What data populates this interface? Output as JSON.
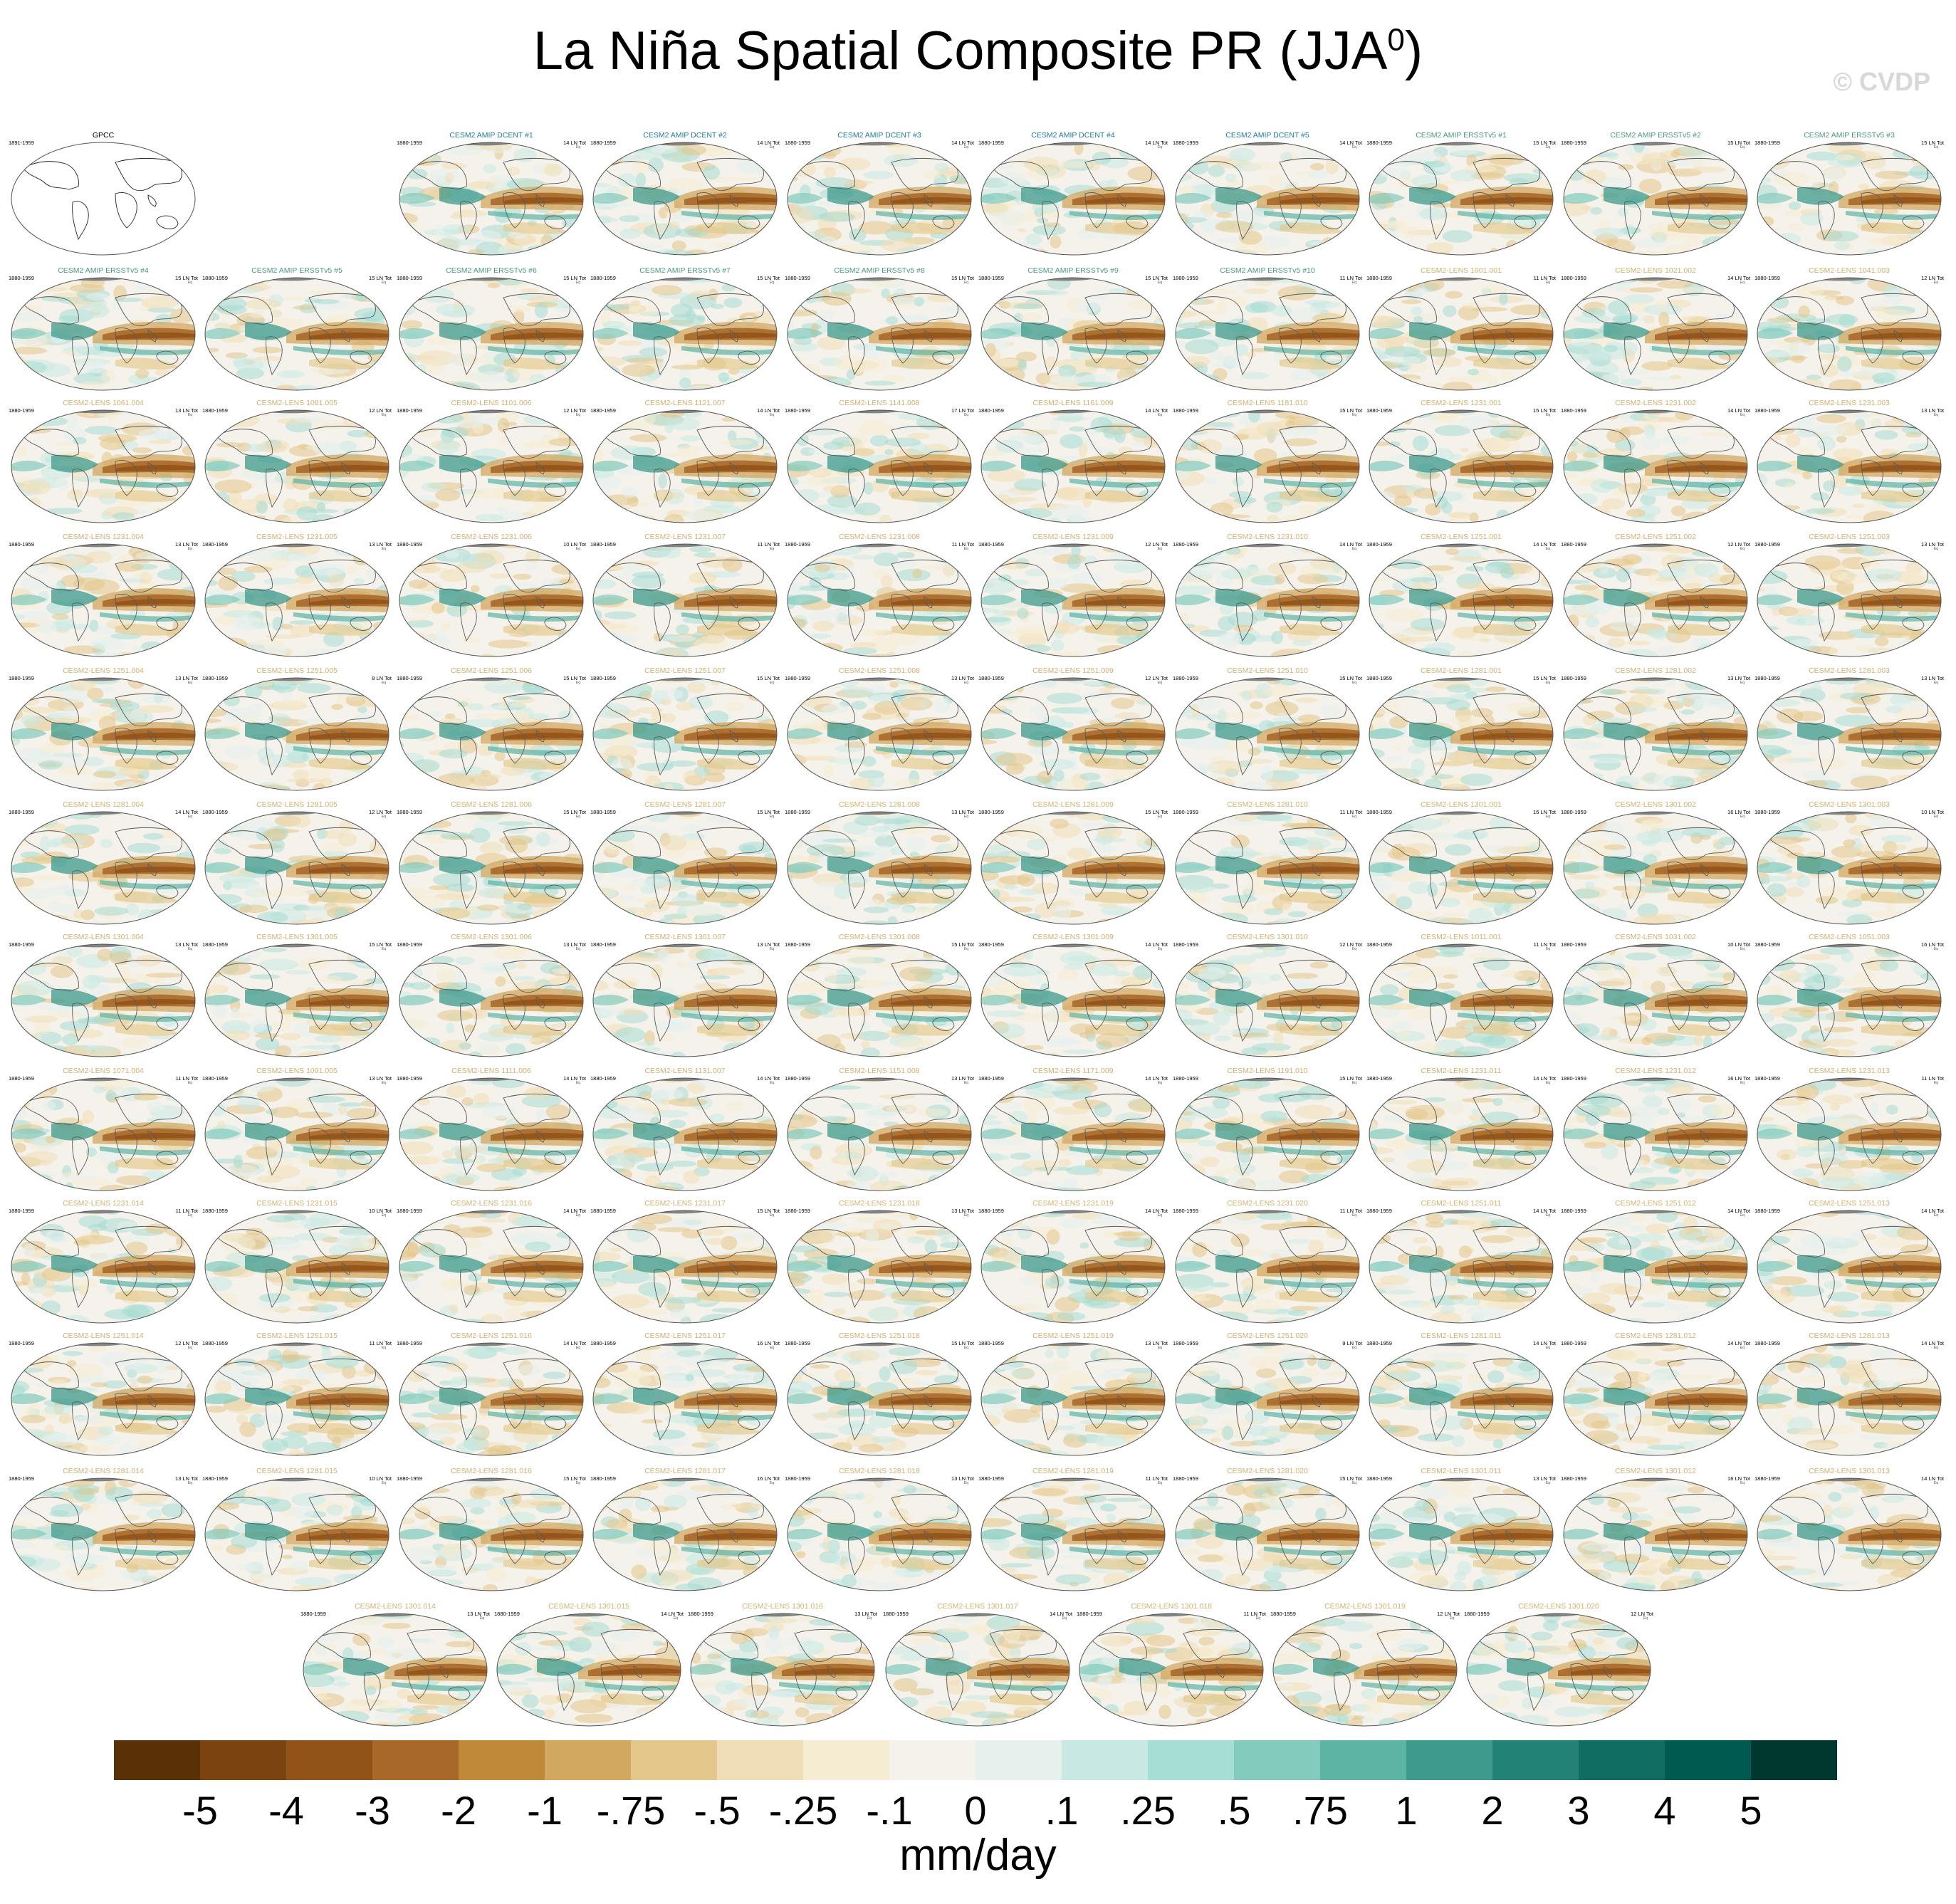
{
  "figure": {
    "title": "La Niña Spatial Composite PR (JJA",
    "title_sup": "0",
    "title_close": ")",
    "credit": "© CVDP"
  },
  "tag_text": "Eq",
  "panels": [
    {
      "title": "GPCC",
      "period": "1891-1959",
      "count": "",
      "kind": "obs"
    },
    {
      "title": "CESM2 AMIP DCENT #1",
      "period": "1880-1959",
      "count": "14 LN Tot",
      "kind": "dcent"
    },
    {
      "title": "CESM2 AMIP DCENT #2",
      "period": "1880-1959",
      "count": "14 LN Tot",
      "kind": "dcent"
    },
    {
      "title": "CESM2 AMIP DCENT #3",
      "period": "1880-1959",
      "count": "14 LN Tot",
      "kind": "dcent"
    },
    {
      "title": "CESM2 AMIP DCENT #4",
      "period": "1880-1959",
      "count": "14 LN Tot",
      "kind": "dcent"
    },
    {
      "title": "CESM2 AMIP DCENT #5",
      "period": "1880-1959",
      "count": "14 LN Tot",
      "kind": "dcent"
    },
    {
      "title": "CESM2 AMIP ERSSTv5 #1",
      "period": "1880-1959",
      "count": "15 LN Tot",
      "kind": "ersst"
    },
    {
      "title": "CESM2 AMIP ERSSTv5 #2",
      "period": "1880-1959",
      "count": "15 LN Tot",
      "kind": "ersst"
    },
    {
      "title": "CESM2 AMIP ERSSTv5 #3",
      "period": "1880-1959",
      "count": "15 LN Tot",
      "kind": "ersst"
    },
    {
      "title": "CESM2 AMIP ERSSTv5 #4",
      "period": "1880-1959",
      "count": "15 LN Tot",
      "kind": "ersst"
    },
    {
      "title": "CESM2 AMIP ERSSTv5 #5",
      "period": "1880-1959",
      "count": "15 LN Tot",
      "kind": "ersst"
    },
    {
      "title": "CESM2 AMIP ERSSTv5 #6",
      "period": "1880-1959",
      "count": "15 LN Tot",
      "kind": "ersst"
    },
    {
      "title": "CESM2 AMIP ERSSTv5 #7",
      "period": "1880-1959",
      "count": "15 LN Tot",
      "kind": "ersst"
    },
    {
      "title": "CESM2 AMIP ERSSTv5 #8",
      "period": "1880-1959",
      "count": "15 LN Tot",
      "kind": "ersst"
    },
    {
      "title": "CESM2 AMIP ERSSTv5 #9",
      "period": "1880-1959",
      "count": "15 LN Tot",
      "kind": "ersst"
    },
    {
      "title": "CESM2 AMIP ERSSTv5 #10",
      "period": "1880-1959",
      "count": "11 LN Tot",
      "kind": "ersst"
    },
    {
      "title": "CESM2-LENS 1001.001",
      "period": "1880-1959",
      "count": "11 LN Tot",
      "kind": "lens"
    },
    {
      "title": "CESM2-LENS 1021.002",
      "period": "1880-1959",
      "count": "14 LN Tot",
      "kind": "lens"
    },
    {
      "title": "CESM2-LENS 1041.003",
      "period": "1880-1959",
      "count": "12 LN Tot",
      "kind": "lens"
    },
    {
      "title": "CESM2-LENS 1061.004",
      "period": "1880-1959",
      "count": "13 LN Tot",
      "kind": "lens"
    },
    {
      "title": "CESM2-LENS 1081.005",
      "period": "1880-1959",
      "count": "12 LN Tot",
      "kind": "lens"
    },
    {
      "title": "CESM2-LENS 1101.006",
      "period": "1880-1959",
      "count": "12 LN Tot",
      "kind": "lens"
    },
    {
      "title": "CESM2-LENS 1121.007",
      "period": "1880-1959",
      "count": "14 LN Tot",
      "kind": "lens"
    },
    {
      "title": "CESM2-LENS 1141.008",
      "period": "1880-1959",
      "count": "17 LN Tot",
      "kind": "lens"
    },
    {
      "title": "CESM2-LENS 1161.009",
      "period": "1880-1959",
      "count": "14 LN Tot",
      "kind": "lens"
    },
    {
      "title": "CESM2-LENS 1181.010",
      "period": "1880-1959",
      "count": "15 LN Tot",
      "kind": "lens"
    },
    {
      "title": "CESM2-LENS 1231.001",
      "period": "1880-1959",
      "count": "15 LN Tot",
      "kind": "lens"
    },
    {
      "title": "CESM2-LENS 1231.002",
      "period": "1880-1959",
      "count": "14 LN Tot",
      "kind": "lens"
    },
    {
      "title": "CESM2-LENS 1231.003",
      "period": "1880-1959",
      "count": "13 LN Tot",
      "kind": "lens"
    },
    {
      "title": "CESM2-LENS 1231.004",
      "period": "1880-1959",
      "count": "13 LN Tot",
      "kind": "lens"
    },
    {
      "title": "CESM2-LENS 1231.005",
      "period": "1880-1959",
      "count": "13 LN Tot",
      "kind": "lens"
    },
    {
      "title": "CESM2-LENS 1231.006",
      "period": "1880-1959",
      "count": "10 LN Tot",
      "kind": "lens"
    },
    {
      "title": "CESM2-LENS 1231.007",
      "period": "1880-1959",
      "count": "11 LN Tot",
      "kind": "lens"
    },
    {
      "title": "CESM2-LENS 1231.008",
      "period": "1880-1959",
      "count": "11 LN Tot",
      "kind": "lens"
    },
    {
      "title": "CESM2-LENS 1231.009",
      "period": "1880-1959",
      "count": "12 LN Tot",
      "kind": "lens"
    },
    {
      "title": "CESM2-LENS 1231.010",
      "period": "1880-1959",
      "count": "14 LN Tot",
      "kind": "lens"
    },
    {
      "title": "CESM2-LENS 1251.001",
      "period": "1880-1959",
      "count": "14 LN Tot",
      "kind": "lens"
    },
    {
      "title": "CESM2-LENS 1251.002",
      "period": "1880-1959",
      "count": "12 LN Tot",
      "kind": "lens"
    },
    {
      "title": "CESM2-LENS 1251.003",
      "period": "1880-1959",
      "count": "13 LN Tot",
      "kind": "lens"
    },
    {
      "title": "CESM2-LENS 1251.004",
      "period": "1880-1959",
      "count": "13 LN Tot",
      "kind": "lens"
    },
    {
      "title": "CESM2-LENS 1251.005",
      "period": "1880-1959",
      "count": "8 LN Tot",
      "kind": "lens"
    },
    {
      "title": "CESM2-LENS 1251.006",
      "period": "1880-1959",
      "count": "15 LN Tot",
      "kind": "lens"
    },
    {
      "title": "CESM2-LENS 1251.007",
      "period": "1880-1959",
      "count": "15 LN Tot",
      "kind": "lens"
    },
    {
      "title": "CESM2-LENS 1251.008",
      "period": "1880-1959",
      "count": "13 LN Tot",
      "kind": "lens"
    },
    {
      "title": "CESM2-LENS 1251.009",
      "period": "1880-1959",
      "count": "12 LN Tot",
      "kind": "lens"
    },
    {
      "title": "CESM2-LENS 1251.010",
      "period": "1880-1959",
      "count": "15 LN Tot",
      "kind": "lens"
    },
    {
      "title": "CESM2-LENS 1281.001",
      "period": "1880-1959",
      "count": "15 LN Tot",
      "kind": "lens"
    },
    {
      "title": "CESM2-LENS 1281.002",
      "period": "1880-1959",
      "count": "13 LN Tot",
      "kind": "lens"
    },
    {
      "title": "CESM2-LENS 1281.003",
      "period": "1880-1959",
      "count": "13 LN Tot",
      "kind": "lens"
    },
    {
      "title": "CESM2-LENS 1281.004",
      "period": "1880-1959",
      "count": "14 LN Tot",
      "kind": "lens"
    },
    {
      "title": "CESM2-LENS 1281.005",
      "period": "1880-1959",
      "count": "12 LN Tot",
      "kind": "lens"
    },
    {
      "title": "CESM2-LENS 1281.006",
      "period": "1880-1959",
      "count": "15 LN Tot",
      "kind": "lens"
    },
    {
      "title": "CESM2-LENS 1281.007",
      "period": "1880-1959",
      "count": "15 LN Tot",
      "kind": "lens"
    },
    {
      "title": "CESM2-LENS 1281.008",
      "period": "1880-1959",
      "count": "13 LN Tot",
      "kind": "lens"
    },
    {
      "title": "CESM2-LENS 1281.009",
      "period": "1880-1959",
      "count": "15 LN Tot",
      "kind": "lens"
    },
    {
      "title": "CESM2-LENS 1281.010",
      "period": "1880-1959",
      "count": "11 LN Tot",
      "kind": "lens"
    },
    {
      "title": "CESM2-LENS 1301.001",
      "period": "1880-1959",
      "count": "16 LN Tot",
      "kind": "lens"
    },
    {
      "title": "CESM2-LENS 1301.002",
      "period": "1880-1959",
      "count": "16 LN Tot",
      "kind": "lens"
    },
    {
      "title": "CESM2-LENS 1301.003",
      "period": "1880-1959",
      "count": "10 LN Tot",
      "kind": "lens"
    },
    {
      "title": "CESM2-LENS 1301.004",
      "period": "1880-1959",
      "count": "13 LN Tot",
      "kind": "lens"
    },
    {
      "title": "CESM2-LENS 1301.005",
      "period": "1880-1959",
      "count": "15 LN Tot",
      "kind": "lens"
    },
    {
      "title": "CESM2-LENS 1301.006",
      "period": "1880-1959",
      "count": "13 LN Tot",
      "kind": "lens"
    },
    {
      "title": "CESM2-LENS 1301.007",
      "period": "1880-1959",
      "count": "13 LN Tot",
      "kind": "lens"
    },
    {
      "title": "CESM2-LENS 1301.008",
      "period": "1880-1959",
      "count": "15 LN Tot",
      "kind": "lens"
    },
    {
      "title": "CESM2-LENS 1301.009",
      "period": "1880-1959",
      "count": "14 LN Tot",
      "kind": "lens"
    },
    {
      "title": "CESM2-LENS 1301.010",
      "period": "1880-1959",
      "count": "12 LN Tot",
      "kind": "lens"
    },
    {
      "title": "CESM2-LENS 1011.001",
      "period": "1880-1959",
      "count": "11 LN Tot",
      "kind": "lens"
    },
    {
      "title": "CESM2-LENS 1031.002",
      "period": "1880-1959",
      "count": "10 LN Tot",
      "kind": "lens"
    },
    {
      "title": "CESM2-LENS 1051.003",
      "period": "1880-1959",
      "count": "16 LN Tot",
      "kind": "lens"
    },
    {
      "title": "CESM2-LENS 1071.004",
      "period": "1880-1959",
      "count": "11 LN Tot",
      "kind": "lens"
    },
    {
      "title": "CESM2-LENS 1091.005",
      "period": "1880-1959",
      "count": "13 LN Tot",
      "kind": "lens"
    },
    {
      "title": "CESM2-LENS 1111.006",
      "period": "1880-1959",
      "count": "14 LN Tot",
      "kind": "lens"
    },
    {
      "title": "CESM2-LENS 1131.007",
      "period": "1880-1959",
      "count": "14 LN Tot",
      "kind": "lens"
    },
    {
      "title": "CESM2-LENS 1151.008",
      "period": "1880-1959",
      "count": "13 LN Tot",
      "kind": "lens"
    },
    {
      "title": "CESM2-LENS 1171.009",
      "period": "1880-1959",
      "count": "14 LN Tot",
      "kind": "lens"
    },
    {
      "title": "CESM2-LENS 1191.010",
      "period": "1880-1959",
      "count": "15 LN Tot",
      "kind": "lens"
    },
    {
      "title": "CESM2-LENS 1231.011",
      "period": "1880-1959",
      "count": "14 LN Tot",
      "kind": "lens"
    },
    {
      "title": "CESM2-LENS 1231.012",
      "period": "1880-1959",
      "count": "16 LN Tot",
      "kind": "lens"
    },
    {
      "title": "CESM2-LENS 1231.013",
      "period": "1880-1959",
      "count": "11 LN Tot",
      "kind": "lens"
    },
    {
      "title": "CESM2-LENS 1231.014",
      "period": "1880-1959",
      "count": "11 LN Tot",
      "kind": "lens"
    },
    {
      "title": "CESM2-LENS 1231.015",
      "period": "1880-1959",
      "count": "10 LN Tot",
      "kind": "lens"
    },
    {
      "title": "CESM2-LENS 1231.016",
      "period": "1880-1959",
      "count": "14 LN Tot",
      "kind": "lens"
    },
    {
      "title": "CESM2-LENS 1231.017",
      "period": "1880-1959",
      "count": "15 LN Tot",
      "kind": "lens"
    },
    {
      "title": "CESM2-LENS 1231.018",
      "period": "1880-1959",
      "count": "13 LN Tot",
      "kind": "lens"
    },
    {
      "title": "CESM2-LENS 1231.019",
      "period": "1880-1959",
      "count": "14 LN Tot",
      "kind": "lens"
    },
    {
      "title": "CESM2-LENS 1231.020",
      "period": "1880-1959",
      "count": "11 LN Tot",
      "kind": "lens"
    },
    {
      "title": "CESM2-LENS 1251.011",
      "period": "1880-1959",
      "count": "14 LN Tot",
      "kind": "lens"
    },
    {
      "title": "CESM2-LENS 1251.012",
      "period": "1880-1959",
      "count": "14 LN Tot",
      "kind": "lens"
    },
    {
      "title": "CESM2-LENS 1251.013",
      "period": "1880-1959",
      "count": "14 LN Tot",
      "kind": "lens"
    },
    {
      "title": "CESM2-LENS 1251.014",
      "period": "1880-1959",
      "count": "12 LN Tot",
      "kind": "lens"
    },
    {
      "title": "CESM2-LENS 1251.015",
      "period": "1880-1959",
      "count": "11 LN Tot",
      "kind": "lens"
    },
    {
      "title": "CESM2-LENS 1251.016",
      "period": "1880-1959",
      "count": "14 LN Tot",
      "kind": "lens"
    },
    {
      "title": "CESM2-LENS 1251.017",
      "period": "1880-1959",
      "count": "16 LN Tot",
      "kind": "lens"
    },
    {
      "title": "CESM2-LENS 1251.018",
      "period": "1880-1959",
      "count": "15 LN Tot",
      "kind": "lens"
    },
    {
      "title": "CESM2-LENS 1251.019",
      "period": "1880-1959",
      "count": "13 LN Tot",
      "kind": "lens"
    },
    {
      "title": "CESM2-LENS 1251.020",
      "period": "1880-1959",
      "count": "9 LN Tot",
      "kind": "lens"
    },
    {
      "title": "CESM2-LENS 1281.011",
      "period": "1880-1959",
      "count": "14 LN Tot",
      "kind": "lens"
    },
    {
      "title": "CESM2-LENS 1281.012",
      "period": "1880-1959",
      "count": "14 LN Tot",
      "kind": "lens"
    },
    {
      "title": "CESM2-LENS 1281.013",
      "period": "1880-1959",
      "count": "14 LN Tot",
      "kind": "lens"
    },
    {
      "title": "CESM2-LENS 1281.014",
      "period": "1880-1959",
      "count": "13 LN Tot",
      "kind": "lens"
    },
    {
      "title": "CESM2-LENS 1281.015",
      "period": "1880-1959",
      "count": "10 LN Tot",
      "kind": "lens"
    },
    {
      "title": "CESM2-LENS 1281.016",
      "period": "1880-1959",
      "count": "15 LN Tot",
      "kind": "lens"
    },
    {
      "title": "CESM2-LENS 1281.017",
      "period": "1880-1959",
      "count": "16 LN Tot",
      "kind": "lens"
    },
    {
      "title": "CESM2-LENS 1281.018",
      "period": "1880-1959",
      "count": "13 LN Tot",
      "kind": "lens"
    },
    {
      "title": "CESM2-LENS 1281.019",
      "period": "1880-1959",
      "count": "11 LN Tot",
      "kind": "lens"
    },
    {
      "title": "CESM2-LENS 1281.020",
      "period": "1880-1959",
      "count": "15 LN Tot",
      "kind": "lens"
    },
    {
      "title": "CESM2-LENS 1301.011",
      "period": "1880-1959",
      "count": "13 LN Tot",
      "kind": "lens"
    },
    {
      "title": "CESM2-LENS 1301.012",
      "period": "1880-1959",
      "count": "16 LN Tot",
      "kind": "lens"
    },
    {
      "title": "CESM2-LENS 1301.013",
      "period": "1880-1959",
      "count": "14 LN Tot",
      "kind": "lens"
    },
    {
      "title": "CESM2-LENS 1301.014",
      "period": "1880-1959",
      "count": "13 LN Tot",
      "kind": "lens"
    },
    {
      "title": "CESM2-LENS 1301.015",
      "period": "1880-1959",
      "count": "14 LN Tot",
      "kind": "lens"
    },
    {
      "title": "CESM2-LENS 1301.016",
      "period": "1880-1959",
      "count": "13 LN Tot",
      "kind": "lens"
    },
    {
      "title": "CESM2-LENS 1301.017",
      "period": "1880-1959",
      "count": "14 LN Tot",
      "kind": "lens"
    },
    {
      "title": "CESM2-LENS 1301.018",
      "period": "1880-1959",
      "count": "11 LN Tot",
      "kind": "lens"
    },
    {
      "title": "CESM2-LENS 1301.019",
      "period": "1880-1959",
      "count": "12 LN Tot",
      "kind": "lens"
    },
    {
      "title": "CESM2-LENS 1301.020",
      "period": "1880-1959",
      "count": "12 LN Tot",
      "kind": "lens"
    }
  ],
  "title_colors": {
    "obs": "#000000",
    "dcent": "#1f7aa0",
    "ersst": "#4a9a7a",
    "lens": "#d0b070"
  },
  "colorbar": {
    "colors": [
      "#5a3006",
      "#7a4310",
      "#915317",
      "#a8682a",
      "#c08938",
      "#d2a760",
      "#e4c78a",
      "#f0deb6",
      "#f6ecd2",
      "#f5f2ec",
      "#e6f1ee",
      "#c8e9e3",
      "#a6ddd4",
      "#82cbbd",
      "#5db3a4",
      "#3d9a8c",
      "#228275",
      "#0f6d62",
      "#005a4f",
      "#00382f"
    ],
    "tick_labels": [
      "-5",
      "-4",
      "-3",
      "-2",
      "-1",
      "-.75",
      "-.5",
      "-.25",
      "-.1",
      "0",
      ".1",
      ".25",
      ".5",
      ".75",
      "1",
      "2",
      "3",
      "4",
      "5"
    ],
    "label": "mm/day"
  }
}
